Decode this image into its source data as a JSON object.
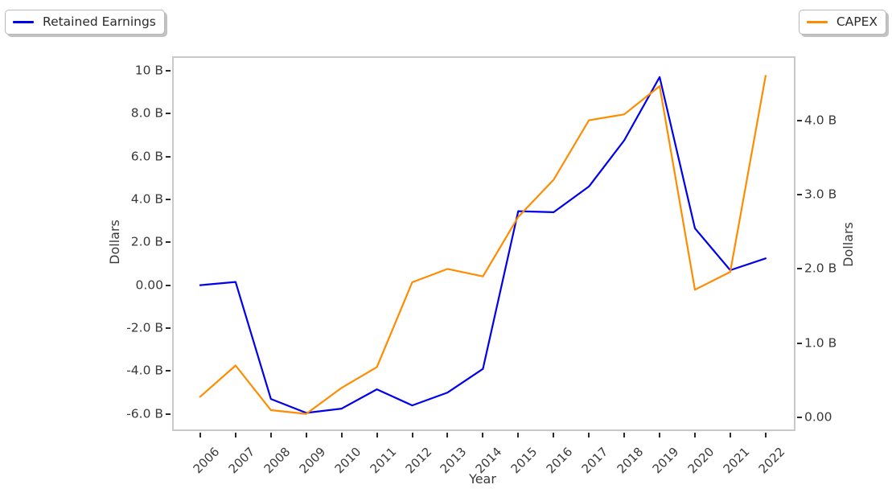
{
  "figure": {
    "background": "#ffffff",
    "spine_color": "#c9c9c9",
    "tick_color": "#2b2b2b",
    "text_color": "#3a3a3a"
  },
  "legend_left": {
    "label": "Retained Earnings",
    "line_color": "#0000ee"
  },
  "legend_right": {
    "label": "CAPEX",
    "line_color": "#ff8c00"
  },
  "chart_data": {
    "type": "line",
    "title": "",
    "xlabel": "Year",
    "ylabel_left": "Dollars",
    "ylabel_right": "Dollars",
    "grid": false,
    "legend_positions": [
      "top-left",
      "top-right"
    ],
    "x": [
      2006,
      2007,
      2008,
      2009,
      2010,
      2011,
      2012,
      2013,
      2014,
      2015,
      2016,
      2017,
      2018,
      2019,
      2020,
      2021,
      2022
    ],
    "series": [
      {
        "name": "Retained Earnings",
        "axis": "left",
        "color": "#0000ee",
        "unit": "billions of dollars",
        "values": [
          0.0,
          0.15,
          -5.3,
          -5.95,
          -5.75,
          -4.85,
          -5.6,
          -5.0,
          -3.9,
          3.45,
          3.4,
          4.6,
          6.75,
          9.7,
          2.65,
          0.7,
          1.25
        ]
      },
      {
        "name": "CAPEX",
        "axis": "right",
        "color": "#ff8c00",
        "unit": "billions of dollars",
        "values": [
          0.28,
          0.7,
          0.1,
          0.05,
          0.4,
          0.68,
          1.82,
          2.0,
          1.9,
          2.7,
          3.2,
          4.0,
          4.08,
          4.46,
          1.72,
          1.96,
          4.6
        ]
      }
    ],
    "x_axis": {
      "min": 2005.25,
      "max": 2022.8,
      "tick_values": [
        2006,
        2007,
        2008,
        2009,
        2010,
        2011,
        2012,
        2013,
        2014,
        2015,
        2016,
        2017,
        2018,
        2019,
        2020,
        2021,
        2022
      ],
      "tick_labels": [
        "2006",
        "2007",
        "2008",
        "2009",
        "2010",
        "2011",
        "2012",
        "2013",
        "2014",
        "2015",
        "2016",
        "2017",
        "2018",
        "2019",
        "2020",
        "2021",
        "2022"
      ],
      "tick_rotation_deg": 45
    },
    "left_axis": {
      "min": -6.72,
      "max": 10.59,
      "tick_values": [
        10,
        8,
        6,
        4,
        2,
        0,
        -2,
        -4,
        -6
      ],
      "tick_labels": [
        "10 B",
        "8.0 B",
        "6.0 B",
        "4.0 B",
        "2.0 B",
        "0.00",
        "-2.0 B",
        "-4.0 B",
        "-6.0 B"
      ]
    },
    "right_axis": {
      "min": -0.16,
      "max": 4.84,
      "tick_values": [
        4,
        3,
        2,
        1,
        0
      ],
      "tick_labels": [
        "4.0 B",
        "3.0 B",
        "2.0 B",
        "1.0 B",
        "0.00"
      ]
    }
  }
}
